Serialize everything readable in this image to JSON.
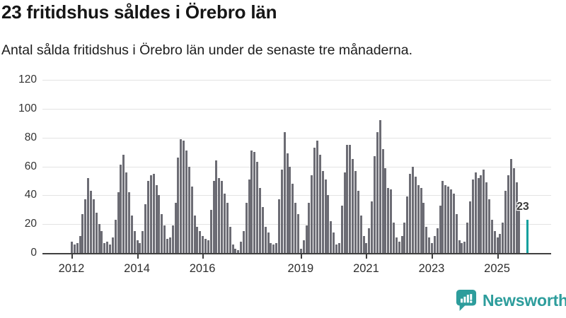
{
  "header": {
    "title": "23 fritidshus såldes i Örebro län",
    "subtitle": "Antal sålda fritidshus i Örebro län under de senaste tre månaderna."
  },
  "chart_data": {
    "type": "bar",
    "title": "23 fritidshus såldes i Örebro län",
    "subtitle": "Antal sålda fritidshus i Örebro län under de senaste tre månaderna.",
    "xlabel": "",
    "ylabel": "",
    "ylim": [
      0,
      120
    ],
    "yticks": [
      0,
      20,
      40,
      60,
      80,
      100,
      120
    ],
    "grid": true,
    "legend": false,
    "frequency": "monthly",
    "x_start_year": 2012,
    "xticks": [
      {
        "label": "2012",
        "slot": 0
      },
      {
        "label": "2014",
        "slot": 24
      },
      {
        "label": "2016",
        "slot": 48
      },
      {
        "label": "2019",
        "slot": 84
      },
      {
        "label": "2021",
        "slot": 108
      },
      {
        "label": "2023",
        "slot": 132
      },
      {
        "label": "2025",
        "slot": 156
      }
    ],
    "values": [
      8,
      6,
      7,
      12,
      27,
      37,
      52,
      43,
      37,
      28,
      20,
      15,
      7,
      8,
      6,
      11,
      23,
      42,
      61,
      68,
      56,
      42,
      26,
      15,
      9,
      7,
      15,
      34,
      50,
      54,
      55,
      47,
      40,
      27,
      19,
      10,
      11,
      19,
      35,
      66,
      79,
      78,
      71,
      60,
      46,
      26,
      18,
      15,
      12,
      10,
      9,
      30,
      50,
      64,
      52,
      50,
      41,
      35,
      18,
      6,
      3,
      2,
      8,
      15,
      35,
      51,
      71,
      70,
      63,
      45,
      32,
      18,
      14,
      7,
      6,
      7,
      37,
      58,
      84,
      69,
      60,
      48,
      35,
      27,
      3,
      9,
      19,
      35,
      54,
      73,
      78,
      68,
      57,
      51,
      40,
      22,
      14,
      6,
      7,
      33,
      56,
      75,
      75,
      65,
      57,
      43,
      26,
      12,
      7,
      17,
      36,
      67,
      84,
      92,
      72,
      59,
      45,
      44,
      21,
      11,
      8,
      12,
      21,
      39,
      55,
      60,
      53,
      47,
      45,
      35,
      18,
      11,
      7,
      12,
      17,
      33,
      50,
      47,
      46,
      44,
      41,
      27,
      9,
      7,
      8,
      21,
      36,
      51,
      56,
      52,
      54,
      58,
      49,
      37,
      23,
      15,
      11,
      13,
      21,
      43,
      54,
      65,
      59,
      49,
      33,
      null,
      null,
      23
    ],
    "bar_color": "#6c6c74",
    "highlight": {
      "index": 167,
      "value": 23,
      "label": "23",
      "color": "#13a09e"
    }
  },
  "footer": {
    "brand": "Newsworthy",
    "brand_color": "#2d9d9c",
    "logo_icon": "newsworthy-chart-bubble-icon"
  }
}
